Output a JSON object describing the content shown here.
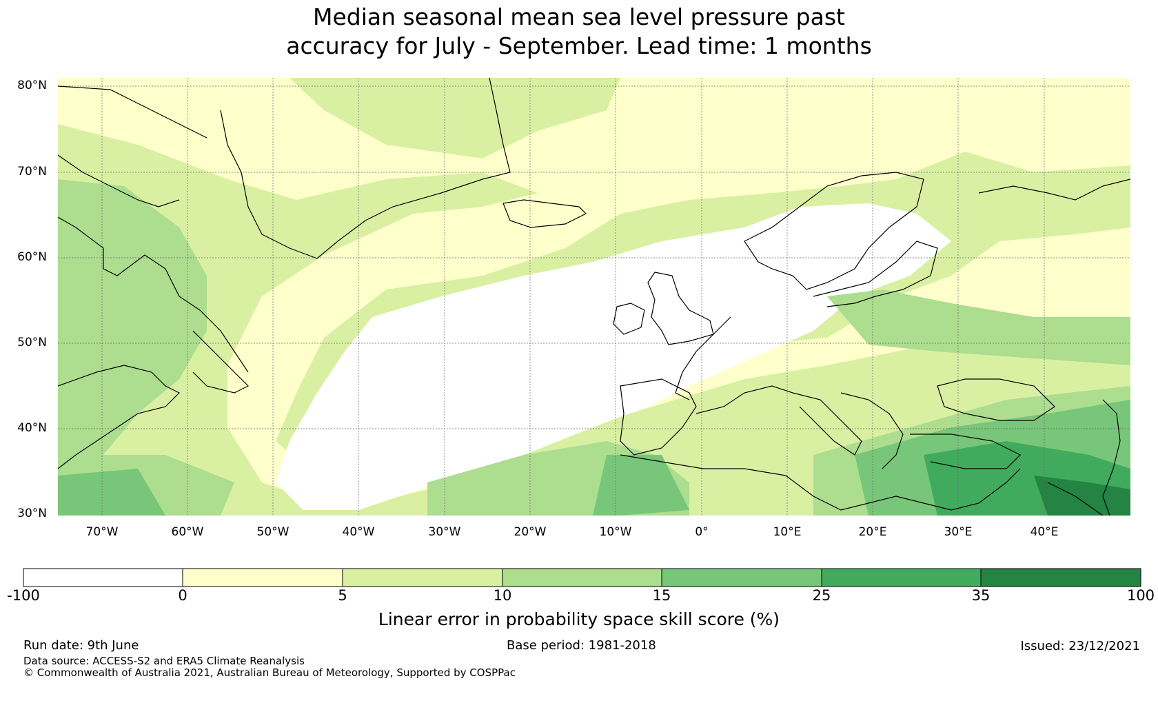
{
  "title": {
    "line1": "Median seasonal mean sea level pressure past",
    "line2": "accuracy for July - September. Lead time: 1 months"
  },
  "map": {
    "lon_range": [
      -75,
      50
    ],
    "lat_range": [
      30,
      81
    ],
    "lat_labels": [
      "80°N",
      "70°N",
      "60°N",
      "50°N",
      "40°N",
      "30°N"
    ],
    "lon_labels": [
      "70°W",
      "60°W",
      "50°W",
      "40°W",
      "30°W",
      "20°W",
      "10°W",
      "0°",
      "10°E",
      "20°E",
      "30°E",
      "40°E"
    ],
    "gridlines": true,
    "coastline_color": "#000000"
  },
  "colorbar": {
    "ticks": [
      "-100",
      "0",
      "5",
      "10",
      "15",
      "25",
      "35",
      "100"
    ],
    "colors": [
      "#ffffff",
      "#ffffcc",
      "#d9f0a3",
      "#addd8e",
      "#78c679",
      "#41ab5d",
      "#238443"
    ],
    "label": "Linear error in probability space skill score (%)"
  },
  "footer": {
    "run_date": "Run date: 9th June",
    "base_period": "Base period: 1981-2018",
    "issued": "Issued: 23/12/2021",
    "data_source": "Data source: ACCESS-S2 and ERA5 Climate Reanalysis",
    "copyright": "© Commonwealth of Australia 2021, Australian Bureau of Meteorology, Supported by COSPPac"
  }
}
